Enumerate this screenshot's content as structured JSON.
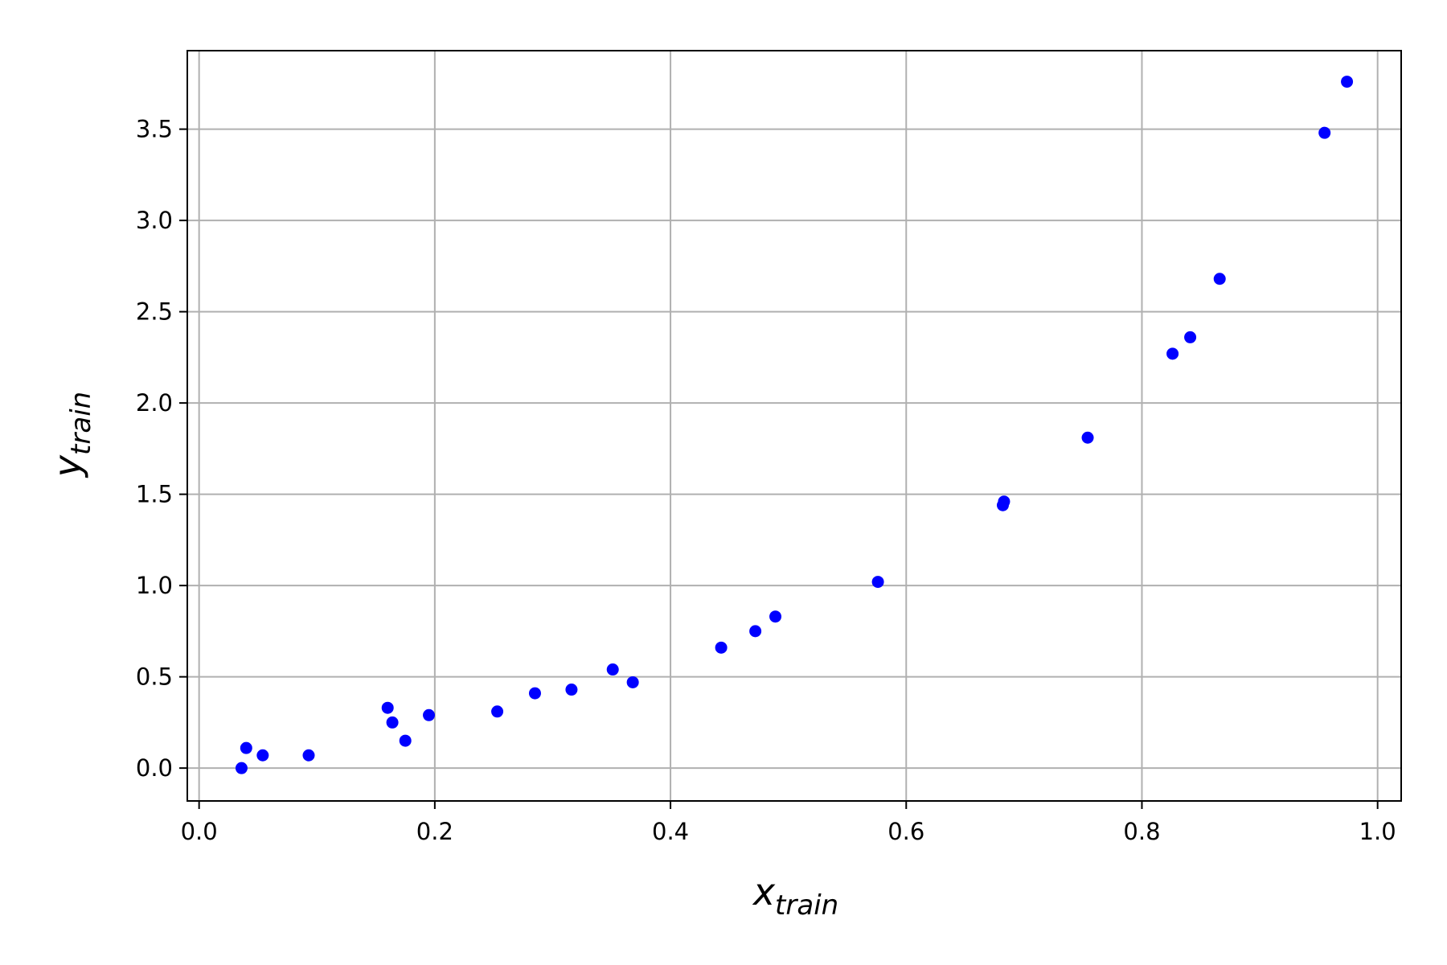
{
  "chart_data": {
    "type": "scatter",
    "title": "",
    "xlabel": "x",
    "xlabel_sub": "train",
    "ylabel": "y",
    "ylabel_sub": "train",
    "xlim": [
      -0.01,
      1.02
    ],
    "ylim": [
      -0.18,
      3.93
    ],
    "grid": true,
    "marker_color": "#0000ff",
    "x_ticks": [
      0.0,
      0.2,
      0.4,
      0.6,
      0.8,
      1.0
    ],
    "x_tick_labels": [
      "0.0",
      "0.2",
      "0.4",
      "0.6",
      "0.8",
      "1.0"
    ],
    "y_ticks": [
      0.0,
      0.5,
      1.0,
      1.5,
      2.0,
      2.5,
      3.0,
      3.5
    ],
    "y_tick_labels": [
      "0.0",
      "0.5",
      "1.0",
      "1.5",
      "2.0",
      "2.5",
      "3.0",
      "3.5"
    ],
    "points": [
      {
        "x": 0.036,
        "y": 0.0
      },
      {
        "x": 0.04,
        "y": 0.11
      },
      {
        "x": 0.054,
        "y": 0.07
      },
      {
        "x": 0.093,
        "y": 0.07
      },
      {
        "x": 0.16,
        "y": 0.33
      },
      {
        "x": 0.164,
        "y": 0.25
      },
      {
        "x": 0.175,
        "y": 0.15
      },
      {
        "x": 0.195,
        "y": 0.29
      },
      {
        "x": 0.253,
        "y": 0.31
      },
      {
        "x": 0.285,
        "y": 0.41
      },
      {
        "x": 0.316,
        "y": 0.43
      },
      {
        "x": 0.351,
        "y": 0.54
      },
      {
        "x": 0.368,
        "y": 0.47
      },
      {
        "x": 0.443,
        "y": 0.66
      },
      {
        "x": 0.472,
        "y": 0.75
      },
      {
        "x": 0.489,
        "y": 0.83
      },
      {
        "x": 0.576,
        "y": 1.02
      },
      {
        "x": 0.682,
        "y": 1.44
      },
      {
        "x": 0.683,
        "y": 1.46
      },
      {
        "x": 0.754,
        "y": 1.81
      },
      {
        "x": 0.826,
        "y": 2.27
      },
      {
        "x": 0.841,
        "y": 2.36
      },
      {
        "x": 0.866,
        "y": 2.68
      },
      {
        "x": 0.955,
        "y": 3.48
      },
      {
        "x": 0.974,
        "y": 3.76
      }
    ]
  }
}
